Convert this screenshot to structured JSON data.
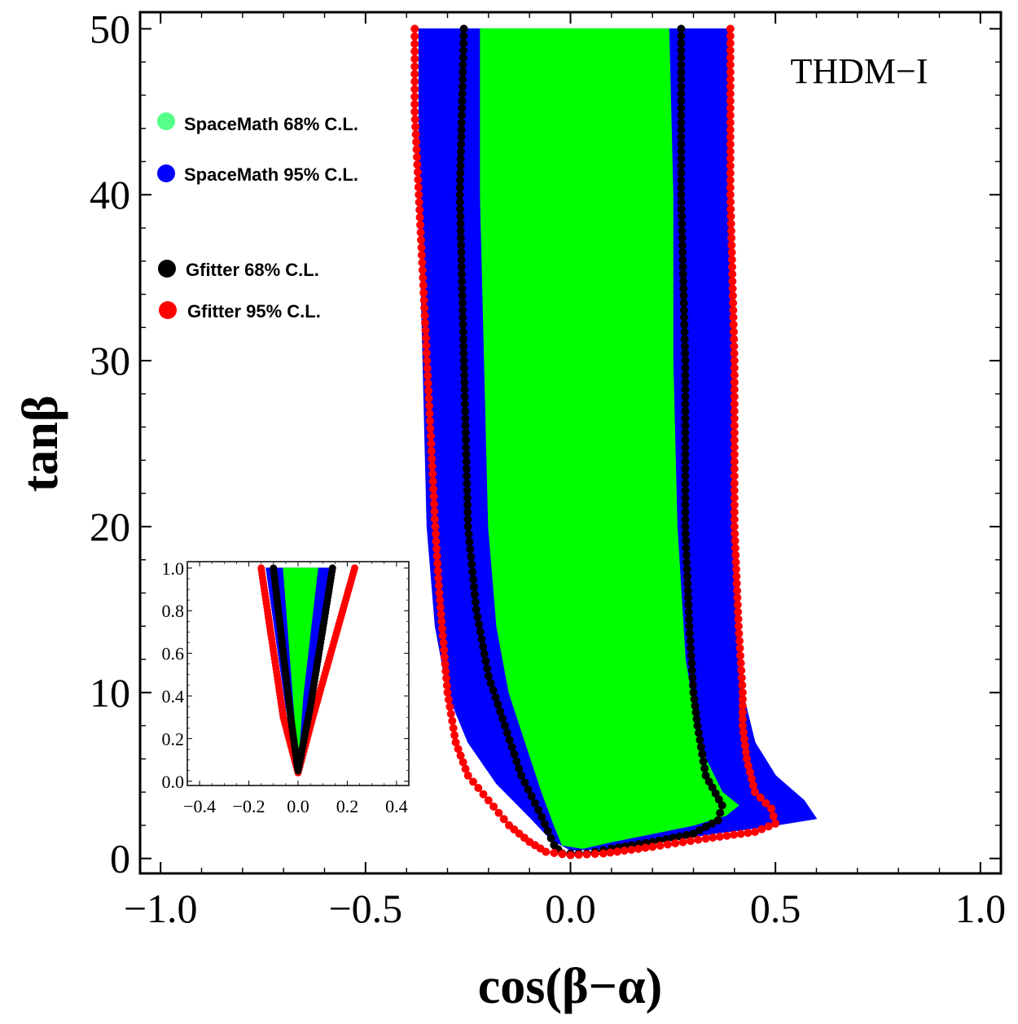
{
  "chart_data": {
    "type": "scatter",
    "title": "",
    "model_label": "THDM−I",
    "xlabel": "cos(β−α)",
    "ylabel": "tanβ",
    "xlim": [
      -1.05,
      1.05
    ],
    "ylim": [
      -0.9,
      51
    ],
    "x_ticks": [
      -1.0,
      -0.5,
      0.0,
      0.5,
      1.0
    ],
    "x_tick_labels": [
      "−1.0",
      "−0.5",
      "0.0",
      "0.5",
      "1.0"
    ],
    "y_ticks": [
      0,
      10,
      20,
      30,
      40,
      50
    ],
    "y_tick_labels": [
      "0",
      "10",
      "20",
      "30",
      "40",
      "50"
    ],
    "legend": [
      {
        "label": "SpaceMath 68% C.L.",
        "color": "#55ff88"
      },
      {
        "label": "SpaceMath 95% C.L.",
        "color": "#0000ff"
      },
      {
        "label": "Gfitter 68% C.L.",
        "color": "#000000"
      },
      {
        "label": "Gfitter 95% C.L.",
        "color": "#ff0000"
      }
    ],
    "series": [
      {
        "name": "SpaceMath 95% C.L.",
        "kind": "region",
        "color": "#0000ff",
        "points": [
          [
            -0.37,
            50
          ],
          [
            -0.37,
            40
          ],
          [
            -0.36,
            30
          ],
          [
            -0.35,
            20
          ],
          [
            -0.33,
            14
          ],
          [
            -0.3,
            10
          ],
          [
            -0.25,
            7
          ],
          [
            -0.18,
            4.5
          ],
          [
            -0.1,
            2.5
          ],
          [
            -0.05,
            1.2
          ],
          [
            0.0,
            0.5
          ],
          [
            0.1,
            0.6
          ],
          [
            0.22,
            1.0
          ],
          [
            0.35,
            1.5
          ],
          [
            0.5,
            2.0
          ],
          [
            0.6,
            2.4
          ],
          [
            0.57,
            3.5
          ],
          [
            0.5,
            5.0
          ],
          [
            0.45,
            7.0
          ],
          [
            0.42,
            10.0
          ],
          [
            0.41,
            14.0
          ],
          [
            0.4,
            20.0
          ],
          [
            0.4,
            30.0
          ],
          [
            0.39,
            40.0
          ],
          [
            0.39,
            50.0
          ]
        ]
      },
      {
        "name": "SpaceMath 68% C.L.",
        "kind": "region",
        "color": "#00ff00",
        "points": [
          [
            -0.22,
            50
          ],
          [
            -0.22,
            40
          ],
          [
            -0.21,
            30
          ],
          [
            -0.2,
            20
          ],
          [
            -0.18,
            14
          ],
          [
            -0.15,
            10
          ],
          [
            -0.11,
            7
          ],
          [
            -0.07,
            4
          ],
          [
            -0.04,
            2
          ],
          [
            -0.02,
            0.8
          ],
          [
            0.03,
            0.6
          ],
          [
            0.1,
            1.0
          ],
          [
            0.2,
            1.5
          ],
          [
            0.3,
            2.0
          ],
          [
            0.38,
            2.6
          ],
          [
            0.41,
            3.2
          ],
          [
            0.37,
            4.0
          ],
          [
            0.33,
            6.0
          ],
          [
            0.3,
            9.0
          ],
          [
            0.28,
            12.0
          ],
          [
            0.27,
            16.0
          ],
          [
            0.26,
            20.0
          ],
          [
            0.25,
            30.0
          ],
          [
            0.25,
            40.0
          ],
          [
            0.24,
            50.0
          ]
        ]
      },
      {
        "name": "Gfitter 68% C.L.",
        "kind": "contour",
        "color": "#000000",
        "points": [
          [
            -0.26,
            50
          ],
          [
            -0.27,
            40
          ],
          [
            -0.26,
            30
          ],
          [
            -0.25,
            20
          ],
          [
            -0.23,
            15
          ],
          [
            -0.2,
            11
          ],
          [
            -0.16,
            8
          ],
          [
            -0.12,
            5
          ],
          [
            -0.07,
            2.5
          ],
          [
            -0.04,
            0.8
          ],
          [
            -0.02,
            0.3
          ],
          [
            0.04,
            0.3
          ],
          [
            0.1,
            0.6
          ],
          [
            0.2,
            1.0
          ],
          [
            0.3,
            1.5
          ],
          [
            0.36,
            2.3
          ],
          [
            0.37,
            3.2
          ],
          [
            0.33,
            5.0
          ],
          [
            0.31,
            8.0
          ],
          [
            0.3,
            10.0
          ],
          [
            0.29,
            14.0
          ],
          [
            0.28,
            20.0
          ],
          [
            0.28,
            30.0
          ],
          [
            0.27,
            40.0
          ],
          [
            0.27,
            50.0
          ]
        ]
      },
      {
        "name": "Gfitter 95% C.L.",
        "kind": "contour",
        "color": "#ff0000",
        "points": [
          [
            -0.38,
            50
          ],
          [
            -0.38,
            45
          ],
          [
            -0.37,
            40
          ],
          [
            -0.36,
            35
          ],
          [
            -0.35,
            30
          ],
          [
            -0.34,
            25
          ],
          [
            -0.33,
            20
          ],
          [
            -0.32,
            16
          ],
          [
            -0.31,
            13
          ],
          [
            -0.3,
            10
          ],
          [
            -0.28,
            7
          ],
          [
            -0.25,
            5
          ],
          [
            -0.2,
            3.5
          ],
          [
            -0.15,
            2.0
          ],
          [
            -0.1,
            1.0
          ],
          [
            -0.06,
            0.4
          ],
          [
            0.0,
            0.2
          ],
          [
            0.08,
            0.3
          ],
          [
            0.2,
            0.7
          ],
          [
            0.33,
            1.2
          ],
          [
            0.45,
            1.6
          ],
          [
            0.5,
            2.1
          ],
          [
            0.49,
            3.0
          ],
          [
            0.45,
            4.0
          ],
          [
            0.43,
            6.0
          ],
          [
            0.42,
            8.0
          ],
          [
            0.42,
            10.0
          ],
          [
            0.41,
            14.0
          ],
          [
            0.4,
            20.0
          ],
          [
            0.4,
            30.0
          ],
          [
            0.39,
            40.0
          ],
          [
            0.39,
            50.0
          ]
        ]
      }
    ],
    "inset": {
      "xlim": [
        -0.45,
        0.45
      ],
      "ylim": [
        -0.02,
        1.03
      ],
      "x_ticks": [
        -0.4,
        -0.2,
        0.0,
        0.2,
        0.4
      ],
      "x_tick_labels": [
        "−0.4",
        "−0.2",
        "0.0",
        "0.2",
        "0.4"
      ],
      "y_ticks": [
        0.0,
        0.2,
        0.4,
        0.6,
        0.8,
        1.0
      ],
      "y_tick_labels": [
        "0.0",
        "0.2",
        "0.4",
        "0.6",
        "0.8",
        "1.0"
      ],
      "series": [
        {
          "name": "SpaceMath 95% C.L.",
          "kind": "region",
          "color": "#0000ff",
          "points": [
            [
              -0.13,
              1.0
            ],
            [
              -0.05,
              0.35
            ],
            [
              0.0,
              0.05
            ],
            [
              0.05,
              0.35
            ],
            [
              0.15,
              1.0
            ]
          ]
        },
        {
          "name": "SpaceMath 68% C.L.",
          "kind": "region",
          "color": "#00ff00",
          "points": [
            [
              -0.06,
              1.0
            ],
            [
              -0.02,
              0.4
            ],
            [
              0.0,
              0.1
            ],
            [
              0.02,
              0.4
            ],
            [
              0.08,
              1.0
            ]
          ]
        },
        {
          "name": "Gfitter 95% C.L.",
          "kind": "contour",
          "color": "#ff0000",
          "points": [
            [
              -0.15,
              1.0
            ],
            [
              -0.06,
              0.3
            ],
            [
              0.0,
              0.04
            ],
            [
              0.06,
              0.3
            ],
            [
              0.23,
              1.0
            ]
          ]
        },
        {
          "name": "Gfitter 68% C.L.",
          "kind": "contour",
          "color": "#000000",
          "points": [
            [
              -0.1,
              1.0
            ],
            [
              -0.03,
              0.3
            ],
            [
              0.0,
              0.05
            ],
            [
              0.05,
              0.35
            ],
            [
              0.14,
              1.0
            ]
          ]
        }
      ]
    }
  }
}
